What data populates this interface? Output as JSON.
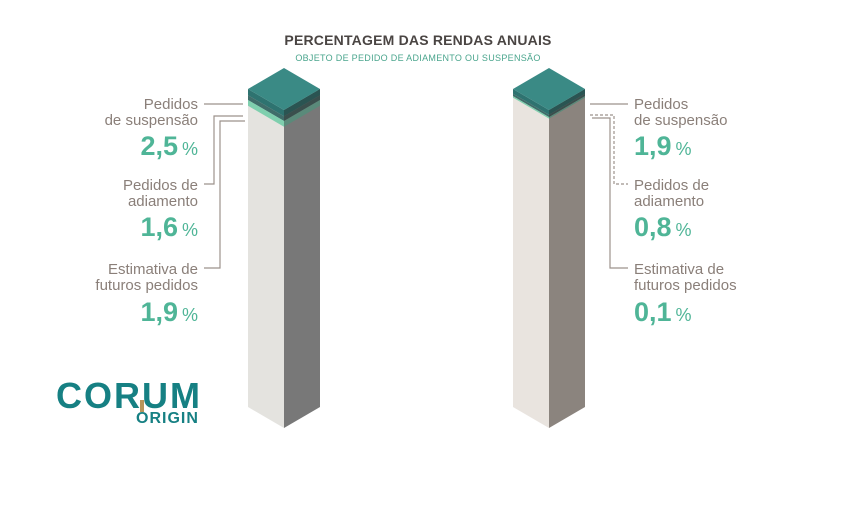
{
  "header": {
    "title": "PERCENTAGEM DAS RENDAS ANUAIS",
    "subtitle": "OBJETO DE PEDIDO DE ADIAMENTO OU SUSPENSÃO"
  },
  "logo": {
    "corum": "CORUM",
    "origin": "ORIGIN"
  },
  "percent_sign": "%",
  "colors": {
    "accent_teal": "#3a8a85",
    "value_green": "#4fb597",
    "label_gray": "#8a7f79",
    "brand_teal": "#168083",
    "brand_gold": "#b8955a"
  },
  "chart_data": [
    {
      "type": "bar",
      "title": "PERCENTAGEM DAS RENDAS ANUAIS",
      "subtitle": "OBJETO DE PEDIDO DE ADIAMENTO OU SUSPENSÃO",
      "series": [
        {
          "name": "Pedidos de suspensão",
          "label_lines": [
            "Pedidos",
            "de suspensão"
          ],
          "value": 2.5,
          "value_text": "2,5"
        },
        {
          "name": "Pedidos de adiamento",
          "label_lines": [
            "Pedidos de",
            "adiamento"
          ],
          "value": 1.6,
          "value_text": "1,6"
        },
        {
          "name": "Estimativa de futuros pedidos",
          "label_lines": [
            "Estimativa de",
            "futuros pedidos"
          ],
          "value": 1.9,
          "value_text": "1,9"
        }
      ]
    },
    {
      "type": "bar",
      "series": [
        {
          "name": "Pedidos de suspensão",
          "label_lines": [
            "Pedidos",
            "de suspensão"
          ],
          "value": 1.9,
          "value_text": "1,9"
        },
        {
          "name": "Pedidos de adiamento",
          "label_lines": [
            "Pedidos de",
            "adiamento"
          ],
          "value": 0.8,
          "value_text": "0,8"
        },
        {
          "name": "Estimativa de futuros pedidos",
          "label_lines": [
            "Estimativa de",
            "futuros pedidos"
          ],
          "value": 0.1,
          "value_text": "0,1"
        }
      ]
    }
  ]
}
